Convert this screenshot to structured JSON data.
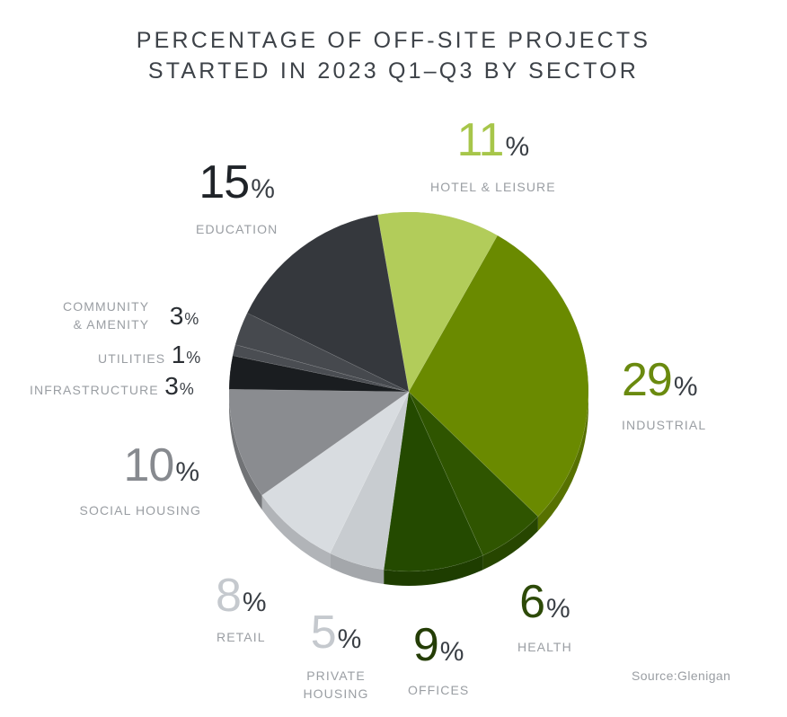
{
  "title": {
    "line1": "PERCENTAGE OF OFF-SITE PROJECTS",
    "line2": "STARTED IN 2023 Q1–Q3 BY SECTOR"
  },
  "source": "Source:Glenigan",
  "percent_sign": "%",
  "labels": {
    "hotel": {
      "value": "11",
      "name": "HOTEL & LEISURE",
      "color": "#a7c64a"
    },
    "industrial": {
      "value": "29",
      "name": "INDUSTRIAL",
      "color": "#6a8a0f"
    },
    "health": {
      "value": "6",
      "name": "HEALTH",
      "color": "#2d4a08"
    },
    "offices": {
      "value": "9",
      "name": "OFFICES",
      "color": "#243d06"
    },
    "private": {
      "value": "5",
      "name_line1": "PRIVATE",
      "name_line2": "HOUSING",
      "color": "#c5c9ce"
    },
    "retail": {
      "value": "8",
      "name": "RETAIL",
      "color": "#c5c9ce"
    },
    "social": {
      "value": "10",
      "name": "SOCIAL HOUSING",
      "color": "#878a8f"
    },
    "infra": {
      "value": "3",
      "name": "INFRASTRUCTURE"
    },
    "utilities": {
      "value": "1",
      "name": "UTILITIES"
    },
    "community": {
      "value": "3",
      "name_line1": "COMMUNITY",
      "name_line2": "& AMENITY"
    },
    "education": {
      "value": "15",
      "name": "EDUCATION",
      "color": "#1f2328"
    }
  },
  "chart_data": {
    "type": "pie",
    "title": "PERCENTAGE OF OFF-SITE PROJECTS STARTED IN 2023 Q1–Q3 BY SECTOR",
    "categories": [
      "Hotel & Leisure",
      "Industrial",
      "Health",
      "Offices",
      "Private Housing",
      "Retail",
      "Social Housing",
      "Infrastructure",
      "Utilities",
      "Community & Amenity",
      "Education"
    ],
    "values": [
      11,
      29,
      6,
      9,
      5,
      8,
      10,
      3,
      1,
      3,
      15
    ],
    "unit": "%",
    "colors": [
      "#b2cc5a",
      "#6a8a00",
      "#2f5500",
      "#244a00",
      "#c8ccd0",
      "#d8dce0",
      "#8a8c90",
      "#1a1d20",
      "#4a4d52",
      "#46494e",
      "#35383d"
    ],
    "start_angle_deg": -10,
    "direction": "clockwise",
    "source": "Source:Glenigan",
    "legend": "none (direct labels)"
  }
}
